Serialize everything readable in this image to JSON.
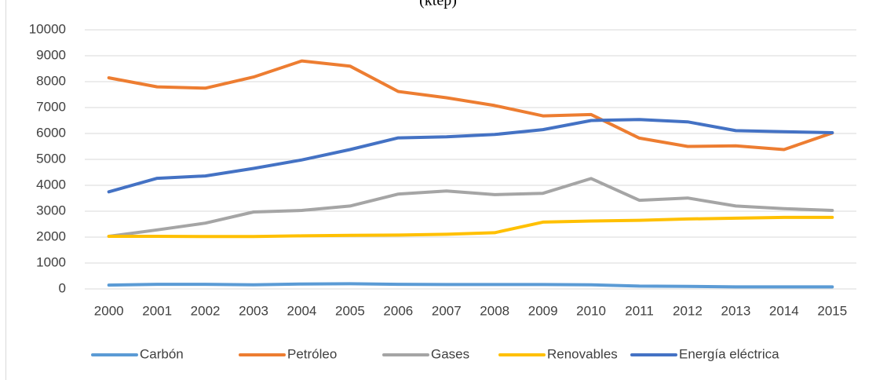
{
  "chart_data": {
    "type": "line",
    "title": "(ktep)",
    "categories": [
      "2000",
      "2001",
      "2002",
      "2003",
      "2004",
      "2005",
      "2006",
      "2007",
      "2008",
      "2009",
      "2010",
      "2011",
      "2012",
      "2013",
      "2014",
      "2015"
    ],
    "series": [
      {
        "name": "Carbón",
        "color": "#5b9bd5",
        "values": [
          150,
          180,
          180,
          160,
          190,
          200,
          180,
          170,
          170,
          170,
          160,
          110,
          100,
          80,
          80,
          80
        ]
      },
      {
        "name": "Petróleo",
        "color": "#ed7d31",
        "values": [
          8150,
          7800,
          7750,
          8180,
          8800,
          8600,
          7620,
          7380,
          7080,
          6680,
          6730,
          5820,
          5500,
          5520,
          5380,
          6020
        ]
      },
      {
        "name": "Gases",
        "color": "#a5a5a5",
        "values": [
          2030,
          2280,
          2540,
          2970,
          3030,
          3200,
          3660,
          3780,
          3640,
          3690,
          4260,
          3420,
          3510,
          3200,
          3100,
          3030
        ]
      },
      {
        "name": "Renovables",
        "color": "#ffc000",
        "values": [
          2030,
          2030,
          2020,
          2020,
          2050,
          2070,
          2080,
          2110,
          2170,
          2580,
          2620,
          2650,
          2700,
          2730,
          2760,
          2760
        ]
      },
      {
        "name": "Energía eléctrica",
        "color": "#4472c4",
        "values": [
          3750,
          4270,
          4360,
          4650,
          4980,
          5380,
          5830,
          5870,
          5960,
          6150,
          6500,
          6540,
          6450,
          6110,
          6070,
          6030
        ]
      }
    ],
    "ylim": [
      0,
      10000
    ],
    "yticks": [
      0,
      1000,
      2000,
      3000,
      4000,
      5000,
      6000,
      7000,
      8000,
      9000,
      10000
    ],
    "grid": true,
    "legend": "bottom"
  }
}
